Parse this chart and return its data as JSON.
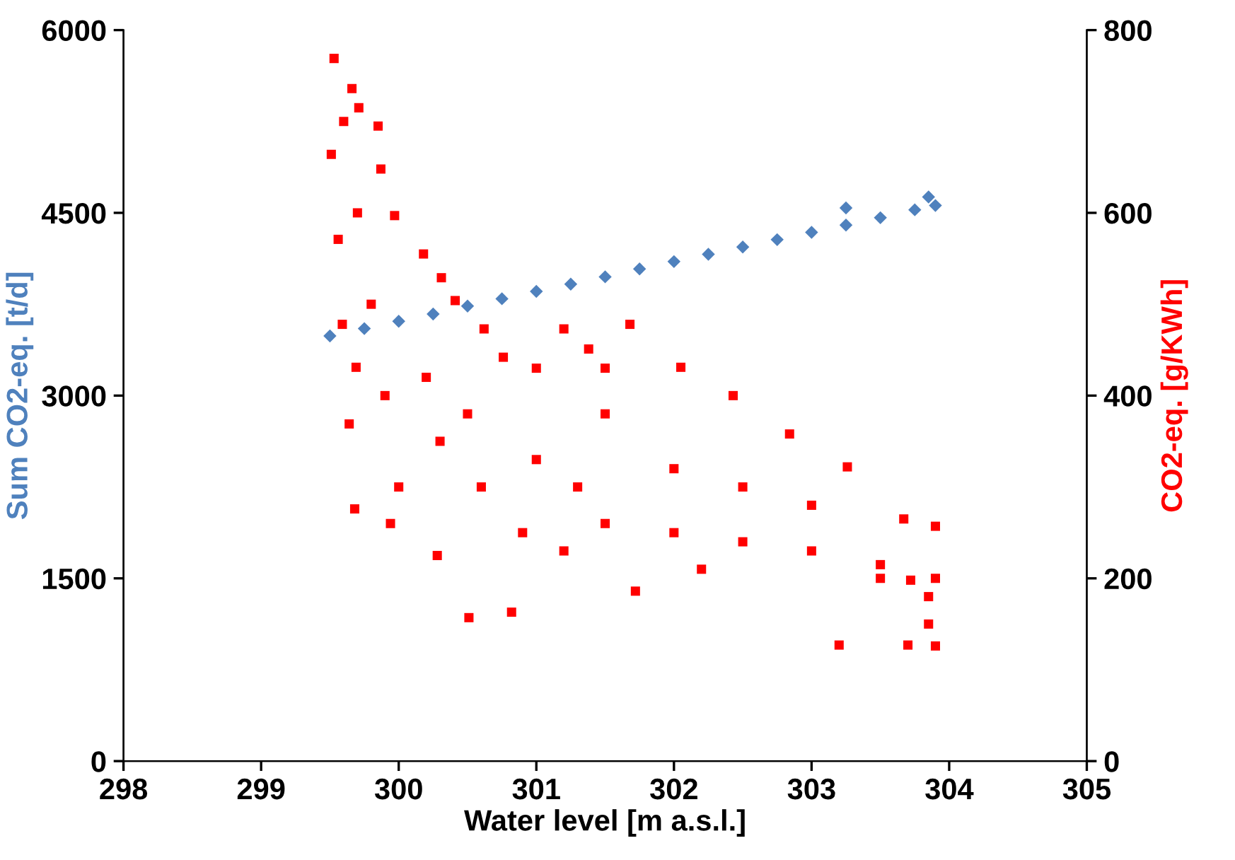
{
  "chart_data": {
    "type": "scatter",
    "xlabel": "Water level [m a.s.l.]",
    "ylabel": "Sum CO2-eq. [t/d]",
    "y2label": "CO2-eq. [g/KWh]",
    "xlim": [
      298,
      305
    ],
    "xticks": [
      298,
      299,
      300,
      301,
      302,
      303,
      304,
      305
    ],
    "ylim": [
      0,
      6000
    ],
    "yticks": [
      0,
      1500,
      3000,
      4500,
      6000
    ],
    "y2lim": [
      0,
      800
    ],
    "y2ticks": [
      0,
      200,
      400,
      600,
      800
    ],
    "grid": false,
    "legend": false,
    "series": [
      {
        "color": "#4f81bd",
        "marker": "diamond",
        "x": [
          299.5,
          299.75,
          300,
          300.25,
          300.5,
          300.75,
          301,
          301.25,
          301.5,
          301.75,
          302,
          302.25,
          302.5,
          302.75,
          303,
          303.25,
          303.5,
          303.75,
          303.9,
          303.25,
          303.85
        ],
        "values": [
          3490,
          3550,
          3610,
          3670,
          3735,
          3795,
          3855,
          3915,
          3975,
          4040,
          4100,
          4160,
          4220,
          4280,
          4340,
          4400,
          4460,
          4525,
          4560,
          4540,
          4630
        ]
      },
      {
        "color": "#ff0000",
        "marker": "square",
        "axis": "y2",
        "x": [
          299.53,
          299.66,
          299.71,
          299.85,
          299.87,
          299.97,
          300.18,
          300.31,
          300.41,
          300.62,
          300.76,
          301.2,
          301.38,
          301.68,
          302.05,
          302.43,
          302.84,
          303.26,
          303.67,
          303.9,
          303.9,
          303.9,
          303.72,
          301.72,
          300.82,
          300.51,
          300.28,
          299.94,
          299.69,
          299.51,
          299.56,
          299.59,
          299.64,
          299.68,
          300.3,
          300.6,
          300.9,
          301.2,
          301.5,
          302,
          302.5,
          303,
          303.5,
          301,
          301.5,
          302,
          302.5,
          303,
          300.2,
          300.5,
          301,
          301.5,
          301.3,
          302.2,
          303.5,
          303.85,
          303.85,
          303.2,
          303.7,
          299.8,
          299.9,
          300,
          299.7,
          299.6
        ],
        "values": [
          769,
          736,
          715,
          695,
          648,
          597,
          555,
          529,
          504,
          473,
          442,
          473,
          451,
          478,
          431,
          400,
          358,
          322,
          265,
          257,
          126,
          200,
          198,
          186,
          163,
          157,
          225,
          260,
          431,
          664,
          571,
          478,
          369,
          276,
          350,
          300,
          250,
          230,
          260,
          250,
          240,
          230,
          215,
          330,
          380,
          320,
          300,
          280,
          420,
          380,
          430,
          430,
          300,
          210,
          200,
          150,
          180,
          127,
          127,
          500,
          400,
          300,
          600,
          700
        ]
      }
    ]
  }
}
